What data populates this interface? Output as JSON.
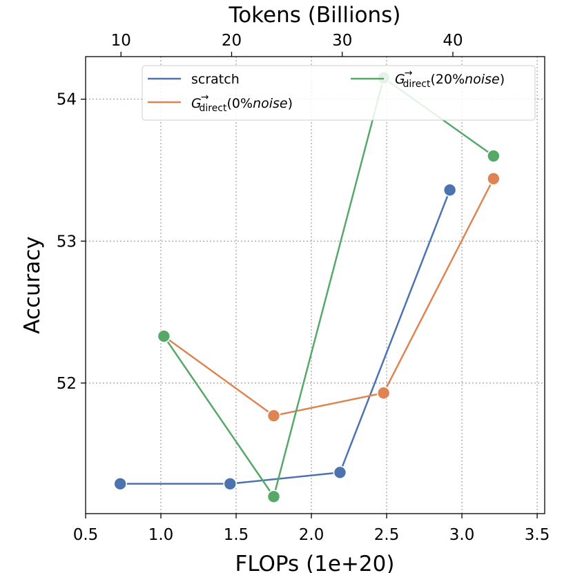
{
  "chart_data": {
    "type": "line",
    "xlabel": "FLOPs (1e+20)",
    "ylabel": "Accuracy",
    "top_xlabel": "Tokens (Billions)",
    "xlim": [
      0.5,
      3.55
    ],
    "ylim": [
      51.08,
      54.3
    ],
    "xticks": [
      0.5,
      1.0,
      1.5,
      2.0,
      2.5,
      3.0,
      3.5
    ],
    "xtick_labels": [
      "0.5",
      "1.0",
      "1.5",
      "2.0",
      "2.5",
      "3.0",
      "3.5"
    ],
    "yticks": [
      52,
      53,
      54
    ],
    "ytick_labels": [
      "52",
      "53",
      "54"
    ],
    "top_xticks_flops": [
      0.735,
      1.47,
      2.205,
      2.94
    ],
    "top_xtick_labels": [
      "10",
      "20",
      "30",
      "40"
    ],
    "grid": true,
    "legend_position": "top",
    "series": [
      {
        "name": "scratch",
        "color": "#4C72B0",
        "x": [
          0.73,
          1.46,
          2.19,
          2.92
        ],
        "y": [
          51.29,
          51.29,
          51.37,
          53.36
        ]
      },
      {
        "name": "G→direct(0%noise)",
        "color": "#DD8452",
        "x": [
          1.02,
          1.75,
          2.48,
          3.21
        ],
        "y": [
          52.33,
          51.77,
          51.93,
          53.44
        ]
      },
      {
        "name": "G→direct(20%noise)",
        "color": "#55A868",
        "x": [
          1.02,
          1.75,
          2.48,
          3.21
        ],
        "y": [
          52.33,
          51.2,
          54.15,
          53.6
        ]
      }
    ]
  }
}
